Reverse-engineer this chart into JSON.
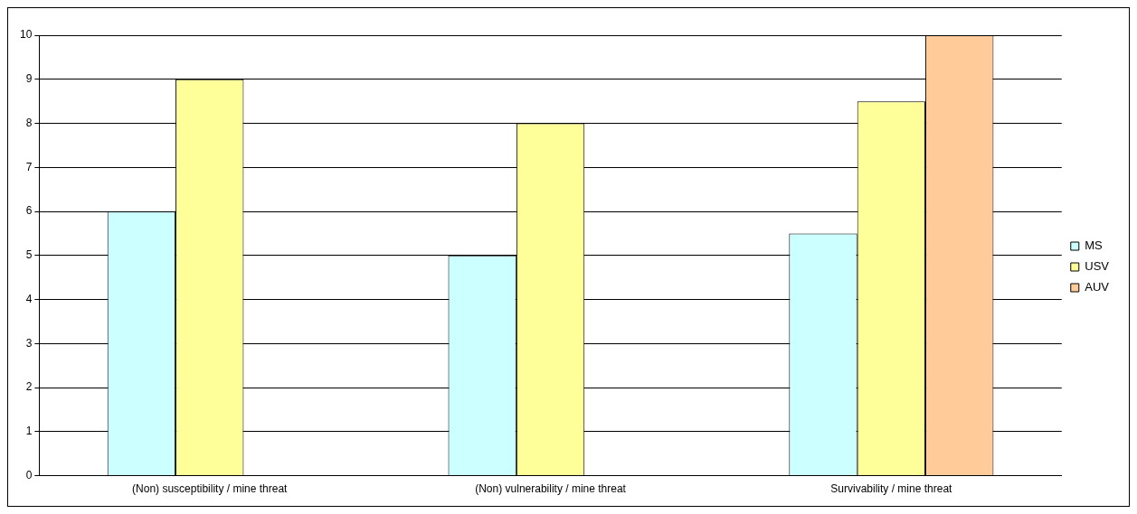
{
  "chart_data": {
    "type": "bar",
    "categories": [
      "(Non) susceptibility / mine threat",
      "(Non) vulnerability / mine threat",
      "Survivability / mine threat"
    ],
    "series": [
      {
        "name": "MS",
        "color": "#ccffff",
        "values": [
          6,
          5,
          5.5
        ]
      },
      {
        "name": "USV",
        "color": "#ffff99",
        "values": [
          9,
          8,
          8.5
        ]
      },
      {
        "name": "AUV",
        "color": "#ffcc99",
        "values": [
          null,
          null,
          10
        ]
      }
    ],
    "ylim": [
      0,
      10
    ],
    "yticks": [
      0,
      1,
      2,
      3,
      4,
      5,
      6,
      7,
      8,
      9,
      10
    ],
    "grid": "y",
    "legend": "right"
  }
}
